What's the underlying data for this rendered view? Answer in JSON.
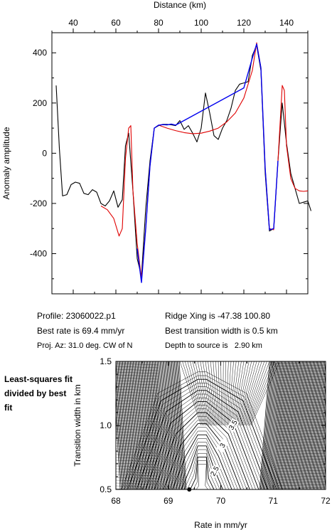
{
  "chart_data": [
    {
      "type": "line",
      "xlabel": "Distance (km)",
      "ylabel": "Anomaly amplitude",
      "xlim": [
        30,
        150
      ],
      "ylim": [
        -560,
        480
      ],
      "x_ticks": [
        40,
        60,
        80,
        100,
        120,
        140
      ],
      "y_ticks": [
        -400,
        -200,
        0,
        200,
        400
      ],
      "x_axis_position": "top",
      "series": [
        {
          "color": "#000000",
          "points": [
            [
              32,
              270
            ],
            [
              33.5,
              20
            ],
            [
              35,
              -170
            ],
            [
              37,
              -165
            ],
            [
              39,
              -125
            ],
            [
              41,
              -115
            ],
            [
              43,
              -120
            ],
            [
              45,
              -160
            ],
            [
              47,
              -165
            ],
            [
              49,
              -145
            ],
            [
              51,
              -155
            ],
            [
              53,
              -200
            ],
            [
              55,
              -210
            ],
            [
              57,
              -190
            ],
            [
              59,
              -150
            ],
            [
              61,
              -215
            ],
            [
              63,
              -185
            ],
            [
              64.5,
              30
            ],
            [
              66,
              80
            ],
            [
              68,
              -150
            ],
            [
              70,
              -420
            ],
            [
              72,
              -490
            ],
            [
              74,
              -220
            ],
            [
              76,
              -30
            ],
            [
              78,
              100
            ],
            [
              80,
              110
            ],
            [
              82,
              115
            ],
            [
              84,
              115
            ],
            [
              86,
              113
            ],
            [
              88,
              110
            ],
            [
              90,
              130
            ],
            [
              92,
              95
            ],
            [
              94,
              110
            ],
            [
              96,
              80
            ],
            [
              98,
              45
            ],
            [
              100,
              100
            ],
            [
              102,
              240
            ],
            [
              104,
              160
            ],
            [
              106,
              70
            ],
            [
              108,
              55
            ],
            [
              110,
              100
            ],
            [
              112,
              130
            ],
            [
              114,
              180
            ],
            [
              116,
              250
            ],
            [
              118,
              275
            ],
            [
              120,
              280
            ],
            [
              122,
              285
            ],
            [
              124,
              390
            ],
            [
              126,
              430
            ],
            [
              128,
              330
            ],
            [
              130,
              -80
            ],
            [
              132,
              -310
            ],
            [
              134,
              -300
            ],
            [
              136,
              -30
            ],
            [
              138,
              200
            ],
            [
              140,
              40
            ],
            [
              142,
              -80
            ],
            [
              144,
              -140
            ],
            [
              146,
              -200
            ],
            [
              148,
              -195
            ],
            [
              150,
              -190
            ],
            [
              151.5,
              -230
            ]
          ]
        },
        {
          "color": "#e00000",
          "points": [
            [
              53,
              -210
            ],
            [
              56,
              -225
            ],
            [
              59,
              -260
            ],
            [
              61.5,
              -330
            ],
            [
              63,
              -300
            ],
            [
              64.5,
              -20
            ],
            [
              66,
              100
            ],
            [
              67,
              110
            ],
            [
              68,
              -150
            ],
            [
              70,
              -360
            ],
            [
              72,
              -500
            ],
            [
              74,
              -300
            ],
            [
              76,
              -50
            ],
            [
              78,
              100
            ],
            [
              80,
              112
            ],
            [
              84,
              100
            ],
            [
              88,
              90
            ],
            [
              92,
              82
            ],
            [
              96,
              78
            ],
            [
              100,
              80
            ],
            [
              104,
              88
            ],
            [
              108,
              100
            ],
            [
              112,
              125
            ],
            [
              116,
              160
            ],
            [
              120,
              220
            ],
            [
              124,
              330
            ],
            [
              126,
              440
            ],
            [
              128,
              340
            ],
            [
              130,
              -60
            ],
            [
              132,
              -300
            ],
            [
              134,
              -305
            ],
            [
              136,
              -30
            ],
            [
              138,
              270
            ],
            [
              139,
              250
            ],
            [
              140,
              30
            ],
            [
              142,
              -100
            ],
            [
              144,
              -140
            ],
            [
              146,
              -150
            ],
            [
              148,
              -152
            ],
            [
              150,
              -150
            ]
          ]
        },
        {
          "color": "#0000ee",
          "points": [
            [
              70,
              -380
            ],
            [
              72,
              -515
            ],
            [
              74,
              -300
            ],
            [
              76,
              -50
            ],
            [
              78,
              100
            ],
            [
              80,
              112
            ],
            [
              82,
              114
            ],
            [
              84,
              113
            ],
            [
              86,
              116
            ],
            [
              88,
              112
            ],
            [
              120,
              260
            ],
            [
              124,
              380
            ],
            [
              126,
              435
            ],
            [
              128,
              340
            ],
            [
              130,
              -60
            ],
            [
              132,
              -305
            ],
            [
              134,
              -300
            ],
            [
              136,
              -30
            ]
          ]
        }
      ]
    },
    {
      "type": "heatmap",
      "xlabel": "Rate in mm/yr",
      "ylabel": "Transition width in km",
      "xlim": [
        68,
        72
      ],
      "ylim": [
        0.5,
        1.5
      ],
      "x_ticks": [
        68,
        69,
        70,
        71,
        72
      ],
      "y_ticks": [
        0.5,
        1.0,
        1.5
      ],
      "best_fit": {
        "rate": 69.4,
        "width": 0.5
      },
      "contour_labels": [
        {
          "text": "3.5",
          "rate": 70.25,
          "width": 1.0
        },
        {
          "text": "3",
          "rate": 70.05,
          "width": 0.84
        },
        {
          "text": "2.5",
          "rate": 69.9,
          "width": 0.64
        }
      ]
    }
  ],
  "info": {
    "profile": "Profile: 23060022.p1",
    "ridge": "Ridge Xing is -47.38 100.80",
    "rate": "Best rate is 69.4 mm/yr",
    "transition": "Best transition width is 0.5 km",
    "azimuth": "Proj. Az: 31.0 deg. CW of N",
    "depth": "Depth to source is   2.90 km"
  },
  "side_note": "Least-squares fit divided by best fit"
}
